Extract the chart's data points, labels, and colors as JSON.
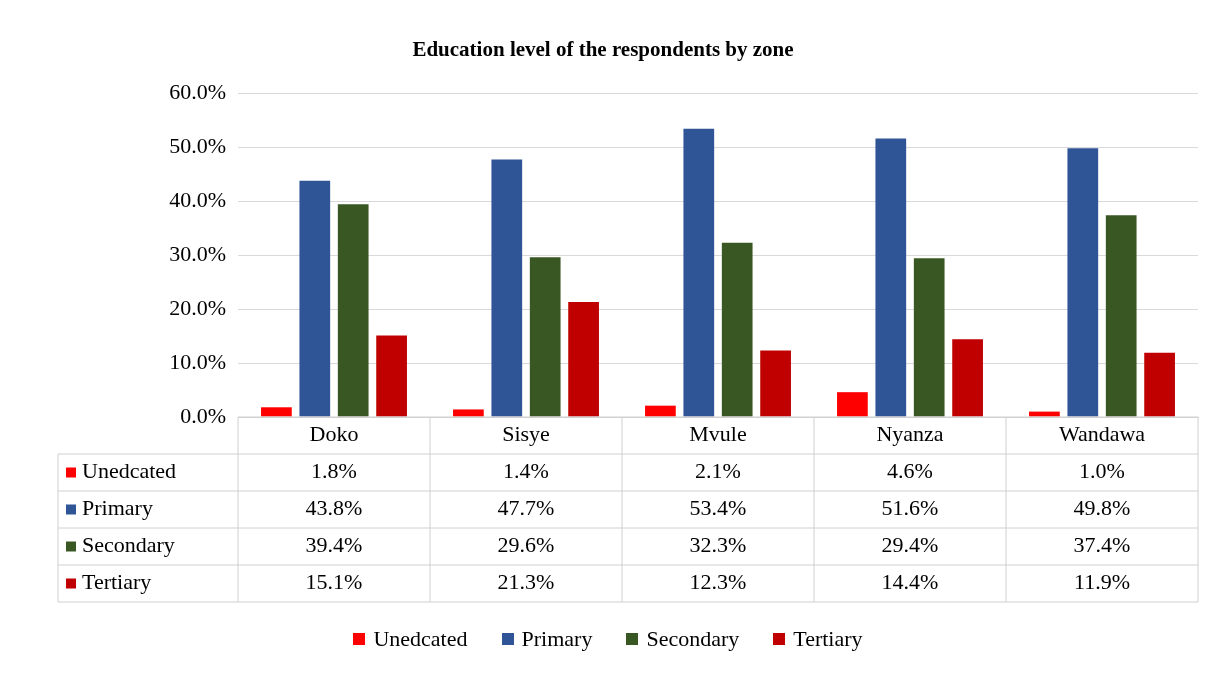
{
  "chart_data": {
    "type": "bar",
    "title": "Education level of the respondents by zone",
    "categories": [
      "Doko",
      "Sisye",
      "Mvule",
      "Nyanza",
      "Wandawa"
    ],
    "series": [
      {
        "name": "Unedcated",
        "color": "#ff0000",
        "values": [
          1.8,
          1.4,
          2.1,
          4.6,
          1.0
        ],
        "value_labels": [
          "1.8%",
          "1.4%",
          "2.1%",
          "4.6%",
          "1.0%"
        ]
      },
      {
        "name": "Primary",
        "color": "#2f5597",
        "values": [
          43.8,
          47.7,
          53.4,
          51.6,
          49.8
        ],
        "value_labels": [
          "43.8%",
          "47.7%",
          "53.4%",
          "51.6%",
          "49.8%"
        ]
      },
      {
        "name": "Secondary",
        "color": "#385723",
        "values": [
          39.4,
          29.6,
          32.3,
          29.4,
          37.4
        ],
        "value_labels": [
          "39.4%",
          "29.6%",
          "32.3%",
          "29.4%",
          "37.4%"
        ]
      },
      {
        "name": "Tertiary",
        "color": "#c00000",
        "values": [
          15.1,
          21.3,
          12.3,
          14.4,
          11.9
        ],
        "value_labels": [
          "15.1%",
          "21.3%",
          "12.3%",
          "14.4%",
          "11.9%"
        ]
      }
    ],
    "ylim": [
      0,
      60
    ],
    "yticks": [
      {
        "value": 0,
        "label": "0.0%"
      },
      {
        "value": 10,
        "label": "10.0%"
      },
      {
        "value": 20,
        "label": "20.0%"
      },
      {
        "value": 30,
        "label": "30.0%"
      },
      {
        "value": 40,
        "label": "40.0%"
      },
      {
        "value": 50,
        "label": "50.0%"
      },
      {
        "value": 60,
        "label": "60.0%"
      }
    ],
    "grid": "y",
    "legend": "bottom"
  }
}
